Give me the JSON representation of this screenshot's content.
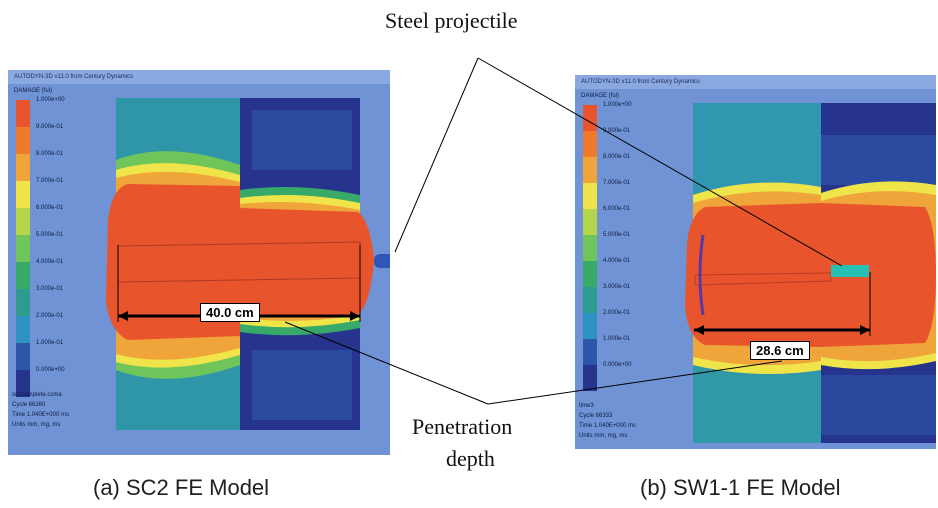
{
  "annotations": {
    "projectile_label": "Steel projectile",
    "penetration_line1": "Penetration",
    "penetration_line2": "depth"
  },
  "panels": {
    "a": {
      "caption": "(a) SC2 FE Model",
      "header": "AUTODYN-3D v11.0 from Century Dynamics",
      "legend_title": "DAMAGE (ful)",
      "legend_labels": [
        "1.000e+00",
        "9.000e-01",
        "8.000e-01",
        "7.000e-01",
        "6.000e-01",
        "5.000e-01",
        "4.000e-01",
        "3.000e-01",
        "2.000e-01",
        "1.000e-01",
        "0.000e+00"
      ],
      "info": [
        "sc2complete.csma",
        "Cycle 66160",
        "Time 1.040E+000 ms",
        "Units mm, mg, ms"
      ],
      "depth_label": "40.0 cm"
    },
    "b": {
      "caption": "(b) SW1-1 FE Model",
      "header": "AUTODYN-3D v11.0 from Century Dynamics",
      "legend_title": "DAMAGE (ful)",
      "legend_labels": [
        "1.000e+00",
        "9.000e-01",
        "8.000e-01",
        "7.000e-01",
        "6.000e-01",
        "5.000e-01",
        "4.000e-01",
        "3.000e-01",
        "2.000e-01",
        "1.000e-01",
        "0.000e+00"
      ],
      "info": [
        "time3",
        "Cycle 66333",
        "Time 1.040E+000 ms",
        "Units mm, mg, ms"
      ],
      "depth_label": "28.6 cm"
    }
  },
  "colors": {
    "scale": [
      "#e8542c",
      "#ef7a2a",
      "#f0a53a",
      "#efe44a",
      "#b5d64a",
      "#6fc45a",
      "#37a968",
      "#2e9b8f",
      "#2f92c3",
      "#2d56a8",
      "#26348d"
    ],
    "background": "#6f93d4",
    "projectile": "#2d56b8"
  }
}
